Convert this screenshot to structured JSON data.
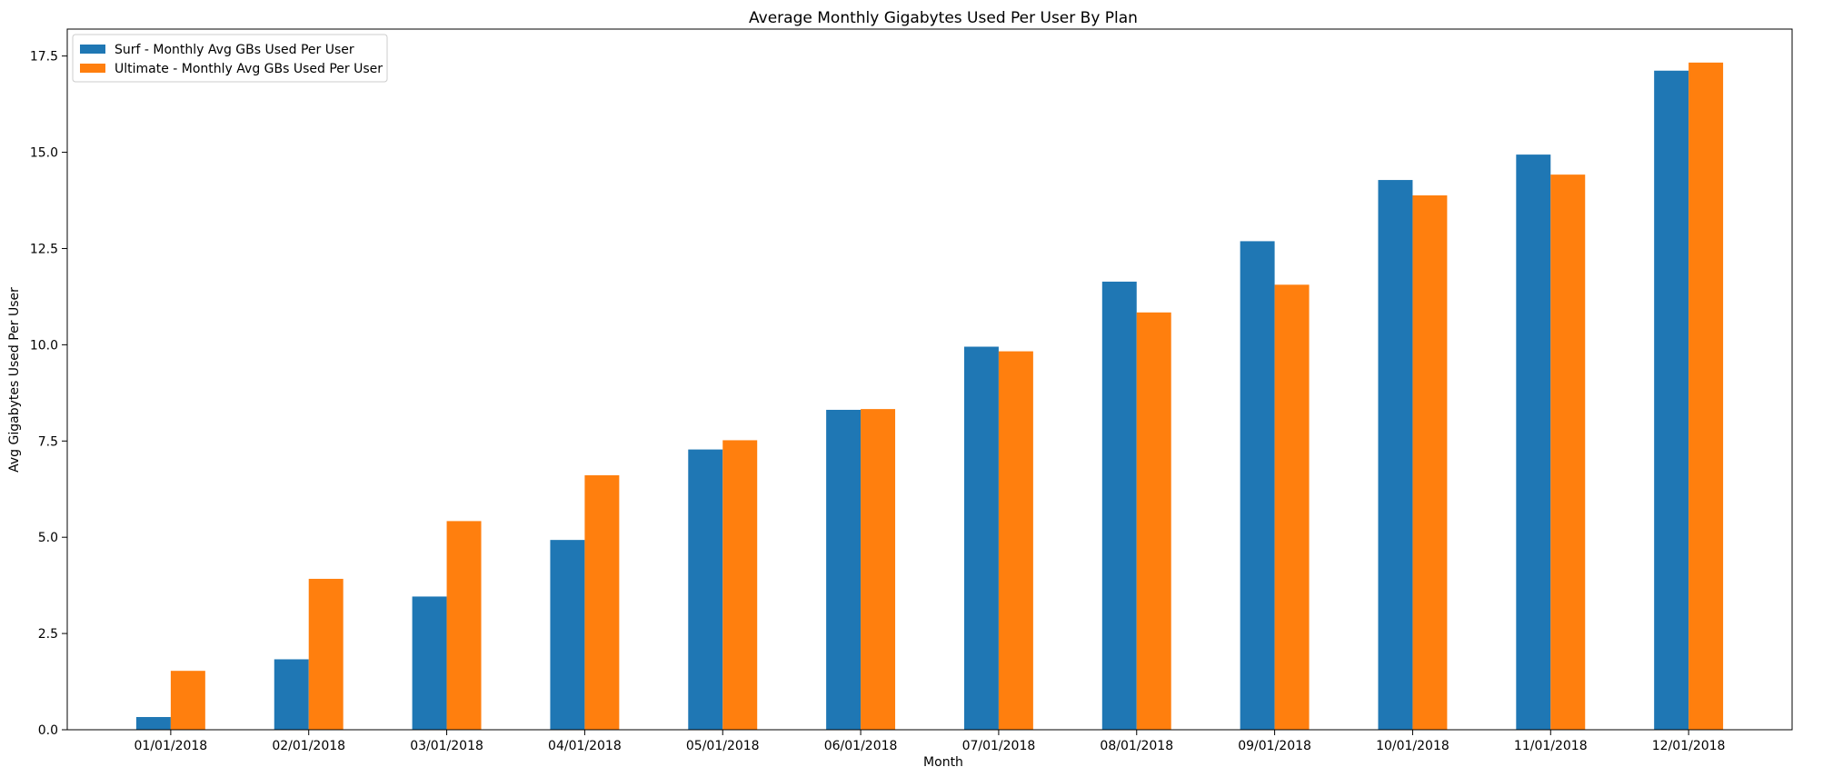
{
  "chart_data": {
    "type": "bar",
    "title": "Average Monthly Gigabytes Used Per User By Plan",
    "xlabel": "Month",
    "ylabel": "Avg Gigabytes Used Per User",
    "ylim": [
      0,
      18.2
    ],
    "yticks": [
      "0.0",
      "2.5",
      "5.0",
      "7.5",
      "10.0",
      "12.5",
      "15.0",
      "17.5"
    ],
    "grid": false,
    "legend_position": "top-left",
    "categories": [
      "01/01/2018",
      "02/01/2018",
      "03/01/2018",
      "04/01/2018",
      "05/01/2018",
      "06/01/2018",
      "07/01/2018",
      "08/01/2018",
      "09/01/2018",
      "10/01/2018",
      "11/01/2018",
      "12/01/2018"
    ],
    "series": [
      {
        "name": "Surf - Monthly Avg GBs Used Per User",
        "color": "#1f77b4",
        "values": [
          0.33,
          1.83,
          3.46,
          4.93,
          7.28,
          8.31,
          9.95,
          11.64,
          12.69,
          14.28,
          14.94,
          17.12
        ]
      },
      {
        "name": "Ultimate - Monthly Avg GBs Used Per User",
        "color": "#ff7f0e",
        "values": [
          1.53,
          3.92,
          5.42,
          6.61,
          7.52,
          8.33,
          9.83,
          10.84,
          11.56,
          13.88,
          14.42,
          17.33
        ]
      }
    ]
  }
}
